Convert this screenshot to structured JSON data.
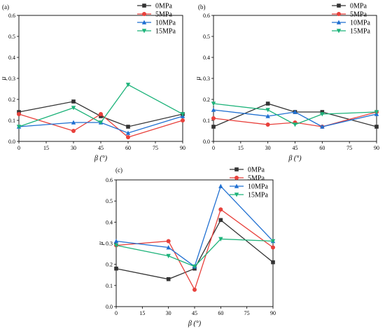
{
  "chart_data": [
    {
      "type": "line",
      "panel_label": "(a)",
      "x": [
        0,
        30,
        45,
        60,
        90
      ],
      "xlabel": "β (°)",
      "ylabel": "μ",
      "xlim": [
        0,
        90
      ],
      "ylim": [
        0,
        0.6
      ],
      "xticks": [
        "0",
        "15",
        "30",
        "45",
        "60",
        "75",
        "90"
      ],
      "yticks": [
        "0.0",
        "0.1",
        "0.2",
        "0.3",
        "0.4",
        "0.5",
        "0.6"
      ],
      "legend_position": "top-right",
      "series": [
        {
          "name": "0MPa",
          "color": "#333333",
          "marker": "square",
          "values": [
            0.14,
            0.19,
            0.12,
            0.07,
            0.13
          ]
        },
        {
          "name": "5MPa",
          "color": "#e8413c",
          "marker": "circle",
          "values": [
            0.13,
            0.05,
            0.13,
            0.02,
            0.1
          ]
        },
        {
          "name": "10MPa",
          "color": "#1f6fd1",
          "marker": "triangle-up",
          "values": [
            0.07,
            0.09,
            0.09,
            0.04,
            0.12
          ]
        },
        {
          "name": "15MPa",
          "color": "#1db37a",
          "marker": "triangle-down",
          "values": [
            0.07,
            0.16,
            0.09,
            0.27,
            0.13
          ]
        }
      ]
    },
    {
      "type": "line",
      "panel_label": "(b)",
      "x": [
        0,
        30,
        45,
        60,
        90
      ],
      "xlabel": "β (°)",
      "ylabel": "μ",
      "xlim": [
        0,
        90
      ],
      "ylim": [
        0,
        0.6
      ],
      "xticks": [
        "0",
        "15",
        "30",
        "45",
        "60",
        "75",
        "90"
      ],
      "yticks": [
        "0.0",
        "0.1",
        "0.2",
        "0.3",
        "0.4",
        "0.5",
        "0.6"
      ],
      "legend_position": "top-right",
      "series": [
        {
          "name": "0MPa",
          "color": "#333333",
          "marker": "square",
          "values": [
            0.07,
            0.18,
            0.14,
            0.14,
            0.07
          ]
        },
        {
          "name": "5MPa",
          "color": "#e8413c",
          "marker": "circle",
          "values": [
            0.11,
            0.08,
            0.09,
            0.07,
            0.14
          ]
        },
        {
          "name": "10MPa",
          "color": "#1f6fd1",
          "marker": "triangle-up",
          "values": [
            0.15,
            0.12,
            0.14,
            0.07,
            0.13
          ]
        },
        {
          "name": "15MPa",
          "color": "#1db37a",
          "marker": "triangle-down",
          "values": [
            0.18,
            0.15,
            0.08,
            0.13,
            0.14
          ]
        }
      ]
    },
    {
      "type": "line",
      "panel_label": "(c)",
      "x": [
        0,
        30,
        45,
        60,
        90
      ],
      "xlabel": "β (°)",
      "ylabel": "μ",
      "xlim": [
        0,
        90
      ],
      "ylim": [
        0,
        0.6
      ],
      "xticks": [
        "0",
        "15",
        "30",
        "45",
        "60",
        "75",
        "90"
      ],
      "yticks": [
        "0.0",
        "0.1",
        "0.2",
        "0.3",
        "0.4",
        "0.5",
        "0.6"
      ],
      "legend_position": "top-left",
      "series": [
        {
          "name": "0MPa",
          "color": "#333333",
          "marker": "square",
          "values": [
            0.18,
            0.13,
            0.18,
            0.41,
            0.21
          ]
        },
        {
          "name": "5MPa",
          "color": "#e8413c",
          "marker": "circle",
          "values": [
            0.29,
            0.31,
            0.08,
            0.46,
            0.28
          ]
        },
        {
          "name": "10MPa",
          "color": "#1f6fd1",
          "marker": "triangle-up",
          "values": [
            0.31,
            0.28,
            0.19,
            0.57,
            0.31
          ]
        },
        {
          "name": "15MPa",
          "color": "#1db37a",
          "marker": "triangle-down",
          "values": [
            0.29,
            0.24,
            0.19,
            0.32,
            0.31
          ]
        }
      ]
    }
  ]
}
